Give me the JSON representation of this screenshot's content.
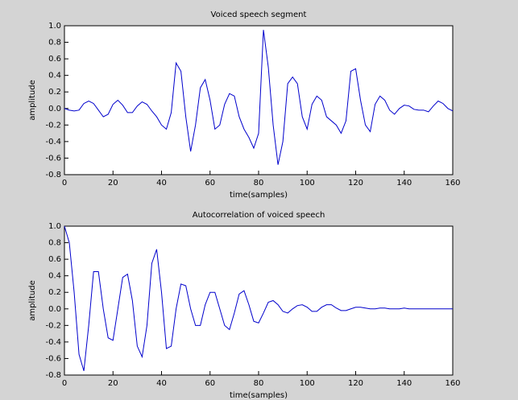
{
  "chart_data": [
    {
      "type": "line",
      "title": "Voiced speech segment",
      "xlabel": "time(samples)",
      "ylabel": "amplitude",
      "color": "#0000cc",
      "x": [
        0,
        2,
        4,
        6,
        8,
        10,
        12,
        14,
        16,
        18,
        20,
        22,
        24,
        26,
        28,
        30,
        32,
        34,
        36,
        38,
        40,
        42,
        44,
        46,
        48,
        50,
        52,
        54,
        56,
        58,
        60,
        62,
        64,
        66,
        68,
        70,
        72,
        74,
        76,
        78,
        80,
        82,
        84,
        86,
        88,
        90,
        92,
        94,
        96,
        98,
        100,
        102,
        104,
        106,
        108,
        110,
        112,
        114,
        116,
        118,
        120,
        122,
        124,
        126,
        128,
        130,
        132,
        134,
        136,
        138,
        140,
        142,
        144,
        146,
        148,
        150,
        152,
        154,
        156,
        158,
        160
      ],
      "values": [
        0.0,
        -0.02,
        -0.03,
        -0.02,
        0.06,
        0.09,
        0.06,
        -0.02,
        -0.1,
        -0.07,
        0.05,
        0.1,
        0.04,
        -0.05,
        -0.05,
        0.03,
        0.08,
        0.05,
        -0.03,
        -0.1,
        -0.2,
        -0.25,
        -0.05,
        0.55,
        0.45,
        -0.1,
        -0.52,
        -0.2,
        0.25,
        0.35,
        0.1,
        -0.25,
        -0.2,
        0.05,
        0.18,
        0.15,
        -0.1,
        -0.25,
        -0.35,
        -0.48,
        -0.3,
        0.95,
        0.5,
        -0.2,
        -0.68,
        -0.4,
        0.3,
        0.38,
        0.3,
        -0.1,
        -0.25,
        0.05,
        0.15,
        0.1,
        -0.1,
        -0.15,
        -0.2,
        -0.3,
        -0.15,
        0.45,
        0.48,
        0.1,
        -0.2,
        -0.28,
        0.05,
        0.15,
        0.1,
        -0.02,
        -0.07,
        0.0,
        0.04,
        0.03,
        -0.01,
        -0.02,
        -0.02,
        -0.04,
        0.03,
        0.09,
        0.06,
        0.0,
        -0.03
      ],
      "xlim": [
        0,
        160
      ],
      "xticks": [
        0,
        20,
        40,
        60,
        80,
        100,
        120,
        140,
        160
      ],
      "ylim": [
        -0.8,
        1.0
      ],
      "yticks": [
        {
          "value": 1.0,
          "label": "1.0"
        },
        0.8,
        0.6,
        0.4,
        0.2,
        {
          "value": 0.0,
          "label": "0.0"
        },
        -0.2,
        -0.4,
        -0.6,
        -0.8
      ]
    },
    {
      "type": "line",
      "title": "Autocorrelation of voiced speech",
      "xlabel": "time(samples)",
      "ylabel": "amplitude",
      "color": "#0000cc",
      "x": [
        0,
        2,
        4,
        6,
        8,
        10,
        12,
        14,
        16,
        18,
        20,
        22,
        24,
        26,
        28,
        30,
        32,
        34,
        36,
        38,
        40,
        42,
        44,
        46,
        48,
        50,
        52,
        54,
        56,
        58,
        60,
        62,
        64,
        66,
        68,
        70,
        72,
        74,
        76,
        78,
        80,
        82,
        84,
        86,
        88,
        90,
        92,
        94,
        96,
        98,
        100,
        102,
        104,
        106,
        108,
        110,
        112,
        114,
        116,
        118,
        120,
        122,
        124,
        126,
        128,
        130,
        132,
        134,
        136,
        138,
        140,
        142,
        144,
        146,
        148,
        150,
        152,
        154,
        156,
        158,
        160
      ],
      "values": [
        1.0,
        0.8,
        0.2,
        -0.55,
        -0.75,
        -0.2,
        0.45,
        0.45,
        0.0,
        -0.35,
        -0.38,
        0.0,
        0.38,
        0.42,
        0.1,
        -0.45,
        -0.58,
        -0.2,
        0.55,
        0.72,
        0.2,
        -0.48,
        -0.45,
        0.0,
        0.3,
        0.28,
        0.0,
        -0.2,
        -0.2,
        0.05,
        0.2,
        0.2,
        0.0,
        -0.2,
        -0.25,
        -0.05,
        0.18,
        0.22,
        0.05,
        -0.15,
        -0.17,
        -0.05,
        0.08,
        0.1,
        0.05,
        -0.03,
        -0.05,
        0.0,
        0.04,
        0.05,
        0.02,
        -0.03,
        -0.03,
        0.02,
        0.05,
        0.05,
        0.01,
        -0.02,
        -0.02,
        0.0,
        0.02,
        0.02,
        0.01,
        0.0,
        0.0,
        0.01,
        0.01,
        0.0,
        0.0,
        0.0,
        0.01,
        0.0,
        0.0,
        0.0,
        0.0,
        0.0,
        0.0,
        0.0,
        0.0,
        0.0,
        0.0
      ],
      "xlim": [
        0,
        160
      ],
      "xticks": [
        0,
        20,
        40,
        60,
        80,
        100,
        120,
        140,
        160
      ],
      "ylim": [
        -0.8,
        1.0
      ],
      "yticks": [
        {
          "value": 1.0,
          "label": "1.0"
        },
        0.8,
        0.6,
        0.4,
        0.2,
        {
          "value": 0.0,
          "label": "0.0"
        },
        -0.2,
        -0.4,
        -0.6,
        -0.8
      ]
    }
  ]
}
